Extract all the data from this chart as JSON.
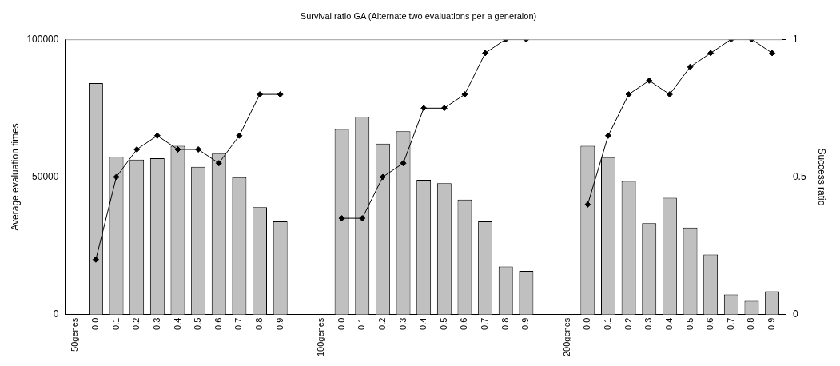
{
  "chart_data": {
    "type": "bar",
    "title": "Survival ratio GA (Alternate two evaluations per a generaion)",
    "ylabel": "Average evaluation times",
    "y2label": "Success ratio",
    "categories": [
      "50genes",
      "0.0",
      "0.1",
      "0.2",
      "0.3",
      "0.4",
      "0.5",
      "0.6",
      "0.7",
      "0.8",
      "0.9",
      null,
      "100genes",
      "0.0",
      "0.1",
      "0.2",
      "0.3",
      "0.4",
      "0.5",
      "0.6",
      "0.7",
      "0.8",
      "0.9",
      null,
      "200genes",
      "0.0",
      "0.1",
      "0.2",
      "0.3",
      "0.4",
      "0.5",
      "0.6",
      "0.7",
      "0.8",
      "0.9"
    ],
    "series": [
      {
        "color": "#c0c0c0",
        "values": [
          null,
          84100,
          57300,
          56300,
          56800,
          61300,
          53700,
          58500,
          49900,
          39000,
          33900,
          null,
          null,
          67400,
          71800,
          62100,
          66600,
          49000,
          47700,
          41800,
          33900,
          17500,
          15900,
          null,
          null,
          61300,
          57000,
          48500,
          33200,
          42400,
          31600,
          21800,
          7300,
          5000,
          8500
        ]
      },
      {
        "type": "line",
        "axis": "y2",
        "color": "#000000",
        "marker": "diamond",
        "values": [
          null,
          0.2,
          0.5,
          0.6,
          0.65,
          0.6,
          0.6,
          0.55,
          0.65,
          0.8,
          0.8,
          null,
          null,
          0.35,
          0.35,
          0.5,
          0.55,
          0.75,
          0.75,
          0.8,
          0.95,
          1,
          1,
          null,
          null,
          0.4,
          0.65,
          0.8,
          0.85,
          0.8,
          0.9,
          0.95,
          1,
          1,
          0.95
        ]
      }
    ],
    "ylim": [
      0,
      100000
    ],
    "yticks": [
      0,
      50000,
      100000
    ],
    "y2lim": [
      0,
      1
    ],
    "y2ticks": [
      0,
      0.5,
      1
    ],
    "legend": false,
    "grid": false
  }
}
